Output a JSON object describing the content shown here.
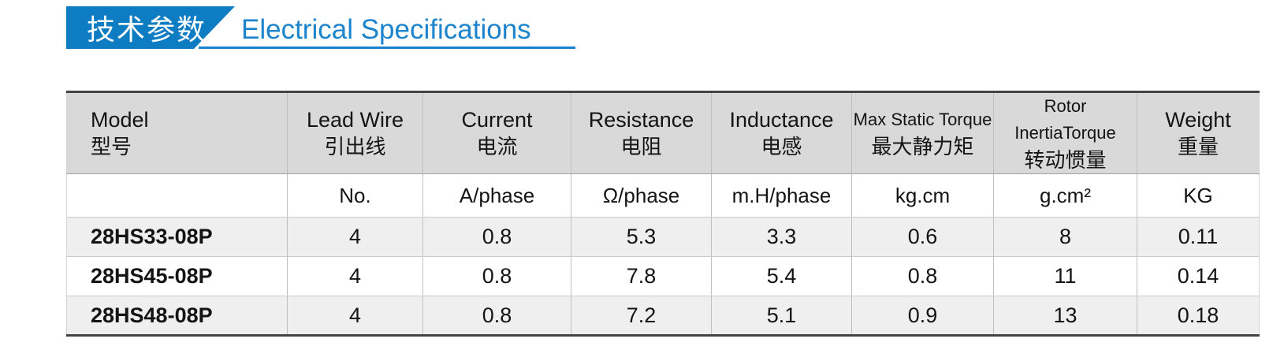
{
  "title": {
    "badge_cn": "技术参数",
    "heading_en": "Electrical Specifications"
  },
  "colors": {
    "accent_blue": "#0e7cc3",
    "heading_blue": "#1c83cd",
    "underline_blue": "#1a82cd",
    "table_frame_dark": "#444444",
    "header_bg": "#d9d9d9",
    "alt_row_bg": "#efefef"
  },
  "table": {
    "columns": [
      {
        "en": "Model",
        "cn": "型号",
        "unit": ""
      },
      {
        "en": "Lead Wire",
        "cn": "引出线",
        "unit": "No."
      },
      {
        "en": "Current",
        "cn": "电流",
        "unit": "A/phase"
      },
      {
        "en": "Resistance",
        "cn": "电阻",
        "unit": "Ω/phase"
      },
      {
        "en": "Inductance",
        "cn": "电感",
        "unit": "m.H/phase"
      },
      {
        "en": "Max Static Torque",
        "cn": "最大静力矩",
        "unit": "kg.cm"
      },
      {
        "en": "Rotor InertiaTorque",
        "cn": "转动惯量",
        "unit": "g.cm²"
      },
      {
        "en": "Weight",
        "cn": "重量",
        "unit": "KG"
      }
    ],
    "rows": [
      [
        "28HS33-08P",
        "4",
        "0.8",
        "5.3",
        "3.3",
        "0.6",
        "8",
        "0.11"
      ],
      [
        "28HS45-08P",
        "4",
        "0.8",
        "7.8",
        "5.4",
        "0.8",
        "11",
        "0.14"
      ],
      [
        "28HS48-08P",
        "4",
        "0.8",
        "7.2",
        "5.1",
        "0.9",
        "13",
        "0.18"
      ]
    ]
  }
}
